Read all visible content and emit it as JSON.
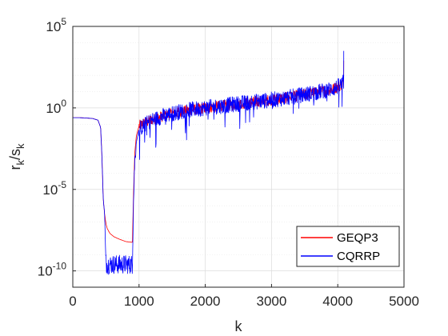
{
  "chart_data": {
    "type": "line",
    "xlabel": "k",
    "ylabel_base": "r",
    "ylabel_sub1": "k",
    "ylabel_mid": "/s",
    "ylabel_sub2": "k",
    "yscale": "log",
    "xlim": [
      0,
      5000
    ],
    "ylim_exponent": [
      -11,
      5
    ],
    "x_ticks": [
      "0",
      "1000",
      "2000",
      "3000",
      "4000",
      "5000"
    ],
    "x_tick_values": [
      0,
      1000,
      2000,
      3000,
      4000,
      5000
    ],
    "y_ticks": [
      {
        "base": "10",
        "exp": "5",
        "value_exp": 5
      },
      {
        "base": "10",
        "exp": "0",
        "value_exp": 0
      },
      {
        "base": "10",
        "exp": "-5",
        "value_exp": -5
      },
      {
        "base": "10",
        "exp": "-10",
        "value_exp": -10
      }
    ],
    "grid": true,
    "minor_grid_y": true,
    "legend_position": "bottom-right",
    "series": [
      {
        "name": "GEQP3",
        "color": "#ff0000",
        "profile": {
          "k": [
            1,
            100,
            200,
            300,
            380,
            420,
            440,
            460,
            480,
            500,
            520,
            560,
            620,
            700,
            800,
            900,
            915,
            935,
            960,
            1000,
            1100,
            1200,
            1400,
            1600,
            1800,
            2000,
            2200,
            2400,
            2600,
            2800,
            3000,
            3200,
            3400,
            3600,
            3800,
            3950,
            4050,
            4090
          ],
          "log10_value": [
            -0.6,
            -0.6,
            -0.62,
            -0.65,
            -0.75,
            -1.2,
            -3.0,
            -5.6,
            -6.5,
            -7.1,
            -7.4,
            -7.7,
            -7.9,
            -8.05,
            -8.2,
            -8.25,
            -5.5,
            -2.8,
            -1.7,
            -1.1,
            -0.9,
            -0.7,
            -0.45,
            -0.25,
            -0.1,
            0.0,
            0.1,
            0.2,
            0.3,
            0.4,
            0.5,
            0.6,
            0.75,
            0.9,
            1.05,
            1.2,
            1.4,
            1.6
          ]
        }
      },
      {
        "name": "CQRRP",
        "color": "#0000ff",
        "profile": {
          "k": [
            1,
            100,
            200,
            300,
            380,
            420,
            440,
            460,
            480,
            500,
            520,
            560,
            620,
            700,
            800,
            900,
            915,
            935,
            960,
            1000,
            1100,
            1200,
            1400,
            1600,
            1800,
            2000,
            2200,
            2400,
            2600,
            2800,
            3000,
            3200,
            3400,
            3600,
            3800,
            3950,
            4050,
            4090
          ],
          "log10_value": [
            -0.6,
            -0.6,
            -0.62,
            -0.65,
            -0.75,
            -1.2,
            -3.0,
            -5.6,
            -6.5,
            -9.5,
            -9.6,
            -9.6,
            -9.6,
            -9.6,
            -9.6,
            -9.6,
            -6.0,
            -3.3,
            -2.1,
            -1.3,
            -1.0,
            -0.75,
            -0.45,
            -0.25,
            -0.1,
            0.0,
            0.1,
            0.2,
            0.3,
            0.4,
            0.5,
            0.6,
            0.75,
            0.9,
            1.05,
            1.2,
            1.4,
            1.6
          ]
        }
      }
    ]
  }
}
